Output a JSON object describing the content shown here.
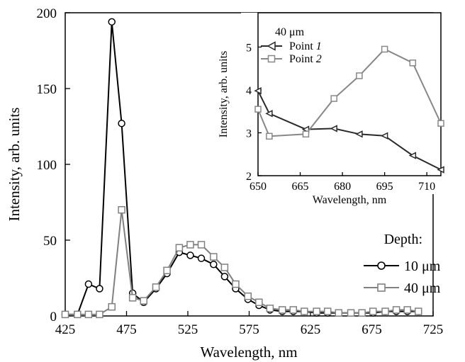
{
  "chart_data": [
    {
      "type": "line",
      "xlabel": "Wavelength, nm",
      "ylabel": "Intensity, arb. units",
      "xlim": [
        425,
        725
      ],
      "ylim": [
        0,
        200
      ],
      "xticks": [
        "425",
        "475",
        "525",
        "575",
        "625",
        "675",
        "725"
      ],
      "yticks": [
        "0",
        "50",
        "100",
        "150",
        "200"
      ],
      "legend_title": "Depth:",
      "legend_position": "right",
      "series": [
        {
          "name": "10 μm",
          "color": "#000000",
          "marker": "circle",
          "x": [
            425,
            435,
            444,
            453,
            463,
            471,
            480,
            489,
            499,
            508,
            518,
            527,
            536,
            546,
            555,
            564,
            574,
            583,
            592,
            602,
            611,
            620,
            630,
            639,
            648,
            658,
            667,
            676,
            686,
            695,
            704,
            713
          ],
          "y": [
            1,
            1,
            21,
            18,
            194,
            127,
            15,
            9,
            18,
            28,
            42,
            40,
            38,
            34,
            26,
            18,
            11,
            7,
            4,
            3,
            3,
            3,
            2,
            2,
            2,
            2,
            2,
            2,
            3,
            3,
            3,
            3
          ]
        },
        {
          "name": "40 μm",
          "color": "#808080",
          "marker": "square",
          "x": [
            425,
            435,
            444,
            453,
            463,
            471,
            480,
            489,
            499,
            508,
            518,
            527,
            536,
            546,
            555,
            564,
            574,
            583,
            592,
            602,
            611,
            620,
            630,
            639,
            648,
            658,
            667,
            676,
            686,
            695,
            704,
            713
          ],
          "y": [
            1,
            1,
            1,
            1,
            6,
            70,
            12,
            10,
            19,
            30,
            45,
            47,
            47,
            39,
            32,
            21,
            13,
            9,
            5,
            4,
            4,
            3,
            3,
            3,
            2,
            2,
            2,
            3,
            3,
            4,
            4,
            3
          ]
        }
      ]
    },
    {
      "type": "line",
      "xlabel": "Wavelength, nm",
      "ylabel": "Intensity, arb. units",
      "xlim": [
        650,
        715
      ],
      "ylim": [
        2,
        5.8
      ],
      "xticks": [
        "650",
        "665",
        "680",
        "695",
        "710"
      ],
      "yticks": [
        "2",
        "3",
        "4",
        "5"
      ],
      "legend_title": "40 μm",
      "legend_position": "top-left",
      "series": [
        {
          "name": "Point ",
          "name_number": "1",
          "color": "#2a2a2a",
          "marker": "triangle-left",
          "x": [
            650,
            654,
            667,
            677,
            686,
            695,
            705,
            715
          ],
          "y": [
            3.98,
            3.45,
            3.08,
            3.1,
            2.97,
            2.93,
            2.47,
            2.14
          ]
        },
        {
          "name": "Point ",
          "name_number": "2",
          "color": "#888888",
          "marker": "square",
          "x": [
            650,
            654,
            667,
            677,
            686,
            695,
            705,
            715
          ],
          "y": [
            3.55,
            2.92,
            2.97,
            3.8,
            4.33,
            4.95,
            4.63,
            3.22
          ]
        }
      ]
    }
  ]
}
